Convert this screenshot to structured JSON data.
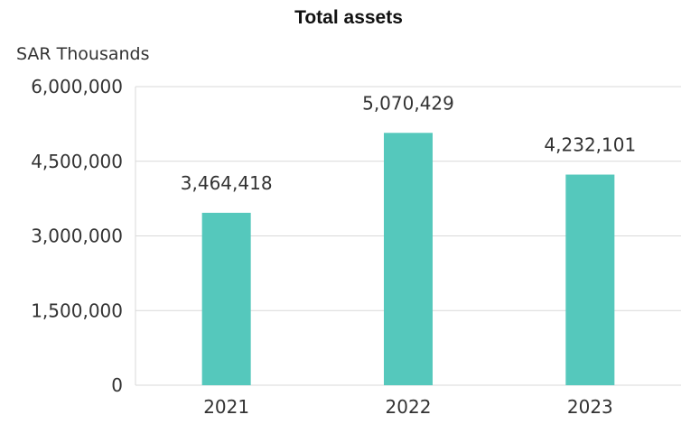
{
  "chart_data": {
    "type": "bar",
    "title": "Total assets",
    "ylabel": "SAR Thousands",
    "xlabel": "",
    "categories": [
      "2021",
      "2022",
      "2023"
    ],
    "values": [
      3464418,
      5070429,
      4232101
    ],
    "value_labels": [
      "3,464,418",
      "5,070,429",
      "4,232,101"
    ],
    "ylim": [
      0,
      6000000
    ],
    "y_ticks": [
      0,
      1500000,
      3000000,
      4500000,
      6000000
    ],
    "y_tick_labels": [
      "0",
      "1,500,000",
      "3,000,000",
      "4,500,000",
      "6,000,000"
    ],
    "grid": true,
    "legend": "none",
    "bar_color": "#55C8BC",
    "grid_color": "#D9D9D9"
  }
}
